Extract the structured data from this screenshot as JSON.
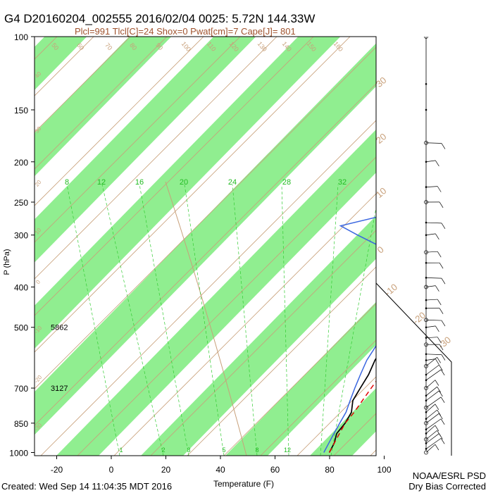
{
  "title": "G4 D20160204_002555 2016/02/04 0025:  5.72N 144.33W",
  "subtitle": "Plcl=991 Tlcl[C]=24 Shox=0 Pwat[cm]=7 Cape[J]= 801",
  "footer_left": "Created: Wed Sep 14 11:04:35 MDT 2016",
  "footer_right_1": "NOAA/ESRL PSD",
  "footer_right_2": "Dry Bias Corrected",
  "colors": {
    "band": "#90ee90",
    "temperature": "#000000",
    "dewpoint": "#3a66e0",
    "parcel": "#e00000",
    "dry_adiabat": "#c8a07a",
    "mixing_ratio": "#33cc33",
    "frame": "#000000"
  },
  "chart_data": {
    "type": "skew-t",
    "xlabel": "Temperature (F)",
    "ylabel": "P (hPa)",
    "x_ticks": [
      -20,
      0,
      20,
      40,
      60,
      80,
      100
    ],
    "y_ticks": [
      100,
      150,
      200,
      250,
      300,
      400,
      500,
      700,
      850,
      1000
    ],
    "y_scale": "log",
    "height_labels": [
      {
        "pressure": 500,
        "text": "5862"
      },
      {
        "pressure": 700,
        "text": "3127"
      }
    ],
    "mixing_ratio_labels": [
      "8",
      "12",
      "16",
      "20",
      "24",
      "28",
      "32"
    ],
    "mixing_ratio_bottom_labels": [
      "1",
      "2",
      "3",
      "5",
      "8",
      "12"
    ],
    "dry_adiabat_labels": [
      "50",
      "60",
      "70",
      "80",
      "90",
      "100",
      "110",
      "120",
      "130",
      "140",
      "150",
      "160"
    ],
    "right_edge_labels": [
      "30",
      "20",
      "10",
      "0",
      "-10",
      "-20",
      "-30"
    ],
    "left_edge_labels": [
      "40",
      "30",
      "20",
      "10",
      "0",
      "-10",
      "-20",
      "-30"
    ],
    "temperature_profile": [
      [
        1000,
        80
      ],
      [
        950,
        79
      ],
      [
        900,
        77
      ],
      [
        850,
        77
      ],
      [
        800,
        76
      ],
      [
        750,
        73
      ],
      [
        700,
        72
      ],
      [
        650,
        71
      ],
      [
        600,
        69
      ],
      [
        550,
        68
      ],
      [
        500,
        66
      ],
      [
        450,
        65
      ],
      [
        400,
        64
      ],
      [
        350,
        59
      ],
      [
        300,
        50
      ],
      [
        275,
        48
      ],
      [
        250,
        43
      ],
      [
        225,
        39
      ],
      [
        200,
        35
      ],
      [
        185,
        33
      ]
    ],
    "dewpoint_profile": [
      [
        1000,
        78
      ],
      [
        950,
        77
      ],
      [
        900,
        76
      ],
      [
        850,
        75
      ],
      [
        800,
        74
      ],
      [
        750,
        72
      ],
      [
        700,
        70
      ],
      [
        650,
        68
      ],
      [
        600,
        66
      ],
      [
        550,
        65
      ],
      [
        500,
        63
      ],
      [
        450,
        62
      ],
      [
        400,
        59
      ],
      [
        350,
        52
      ],
      [
        325,
        40
      ],
      [
        300,
        25
      ],
      [
        285,
        16
      ],
      [
        270,
        28
      ],
      [
        250,
        35
      ],
      [
        225,
        30
      ],
      [
        210,
        28
      ]
    ],
    "parcel_profile": [
      [
        1000,
        80
      ],
      [
        950,
        79
      ],
      [
        900,
        78
      ],
      [
        850,
        77
      ],
      [
        800,
        77
      ],
      [
        700,
        76
      ],
      [
        600,
        75
      ],
      [
        500,
        73
      ],
      [
        400,
        68
      ],
      [
        300,
        57
      ],
      [
        250,
        49
      ],
      [
        200,
        39
      ],
      [
        185,
        36
      ]
    ],
    "wind_barb_pressures": [
      100,
      130,
      150,
      180,
      200,
      230,
      250,
      280,
      300,
      330,
      350,
      380,
      400,
      430,
      450,
      480,
      500,
      530,
      550,
      580,
      600,
      620,
      650,
      670,
      700,
      730,
      750,
      780,
      800,
      830,
      850,
      880,
      900,
      930,
      950,
      980,
      1000
    ]
  }
}
